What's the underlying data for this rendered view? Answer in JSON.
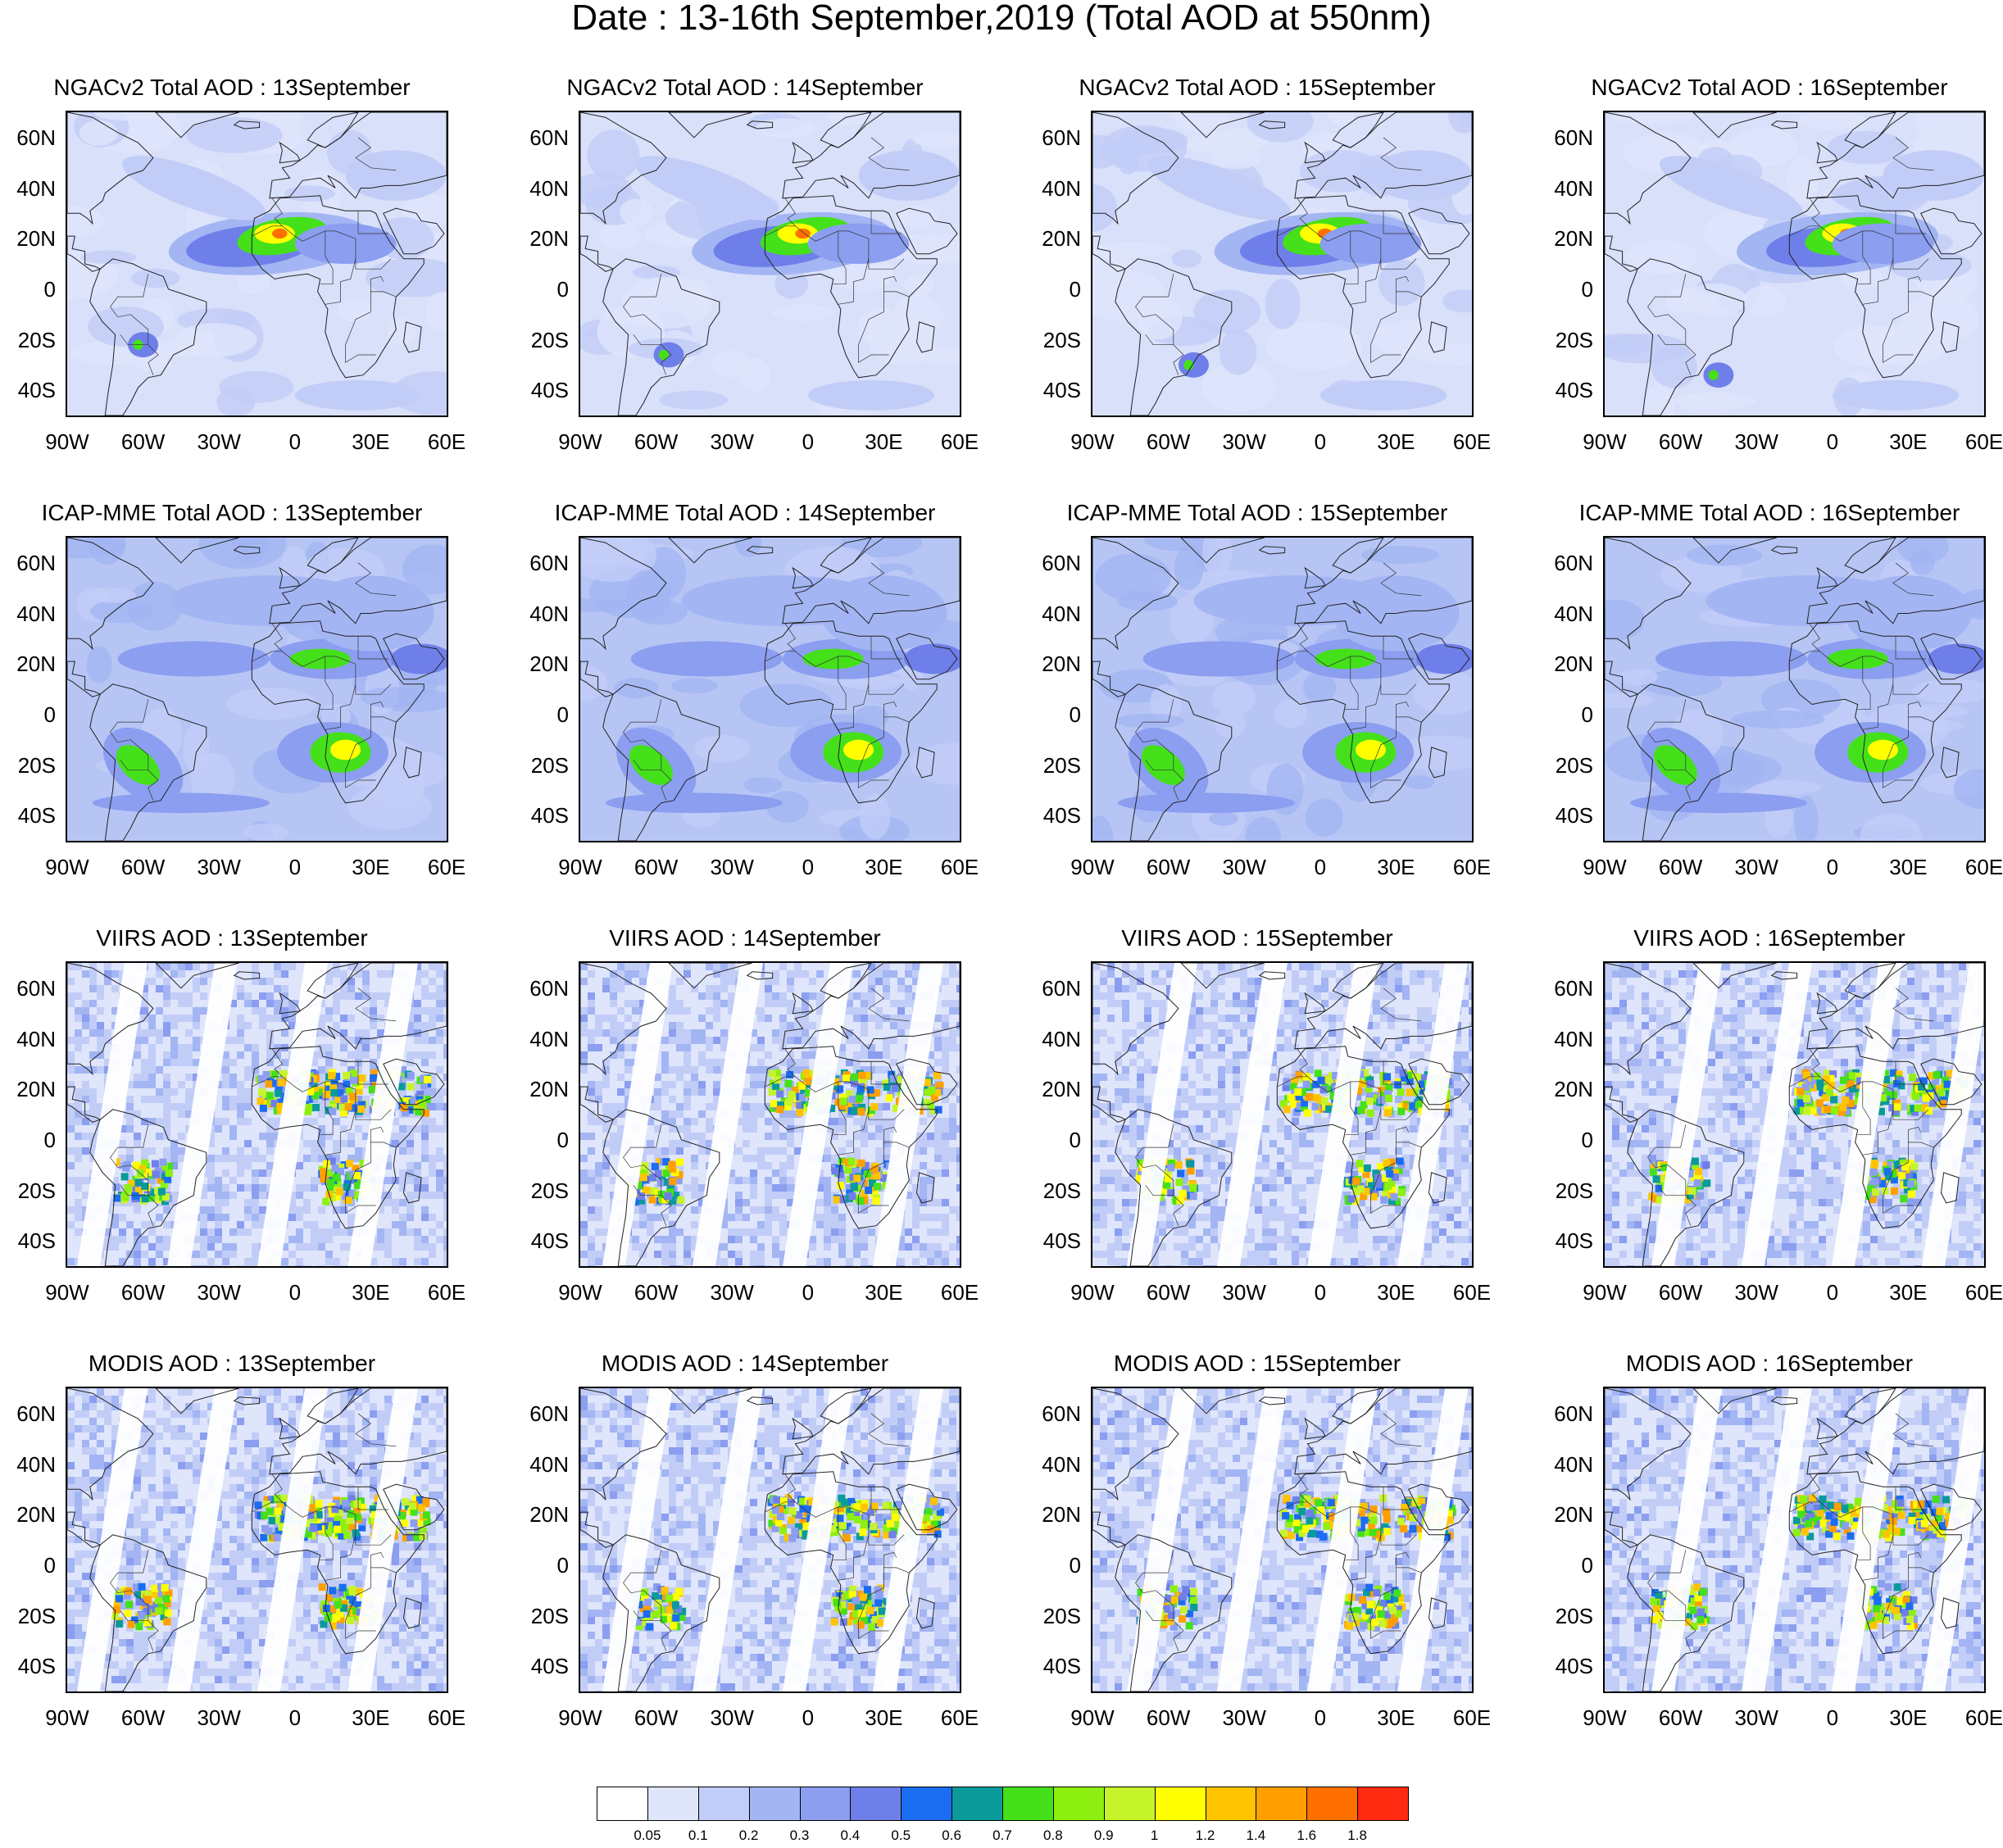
{
  "title": "Date : 13-16th September,2019 (Total AOD at 550nm)",
  "days": [
    "13September",
    "14September",
    "15September",
    "16September"
  ],
  "rows": [
    {
      "prefix": "NGACv2 Total AOD : ",
      "style": "smooth-dust"
    },
    {
      "prefix": "ICAP-MME Total AOD : ",
      "style": "smooth-smoke"
    },
    {
      "prefix": "VIIRS AOD : ",
      "style": "satellite-swath"
    },
    {
      "prefix": "MODIS AOD : ",
      "style": "satellite-swath"
    }
  ],
  "panels": [
    {
      "title": "NGACv2 Total AOD : 13September"
    },
    {
      "title": "NGACv2 Total AOD : 14September"
    },
    {
      "title": "NGACv2 Total AOD : 15September"
    },
    {
      "title": "NGACv2 Total AOD : 16September"
    },
    {
      "title": "ICAP-MME Total AOD : 13September"
    },
    {
      "title": "ICAP-MME Total AOD : 14September"
    },
    {
      "title": "ICAP-MME Total AOD : 15September"
    },
    {
      "title": "ICAP-MME Total AOD : 16September"
    },
    {
      "title": "VIIRS AOD : 13September"
    },
    {
      "title": "VIIRS AOD : 14September"
    },
    {
      "title": "VIIRS AOD : 15September"
    },
    {
      "title": "VIIRS AOD : 16September"
    },
    {
      "title": "MODIS AOD : 13September"
    },
    {
      "title": "MODIS AOD : 14September"
    },
    {
      "title": "MODIS AOD : 15September"
    },
    {
      "title": "MODIS AOD : 16September"
    }
  ],
  "map": {
    "lon_range": [
      -90,
      60
    ],
    "lat_range": [
      -50,
      70
    ],
    "lat_ticks": [
      "60N",
      "40N",
      "20N",
      "0",
      "20S",
      "40S"
    ],
    "lat_tick_values": [
      60,
      40,
      20,
      0,
      -20,
      -40
    ],
    "lon_ticks": [
      "90W",
      "60W",
      "30W",
      "0",
      "30E",
      "60E"
    ],
    "lon_tick_values": [
      -90,
      -60,
      -30,
      0,
      30,
      60
    ]
  },
  "colorbar": {
    "colors": [
      "#ffffff",
      "#dfe5fb",
      "#c2cdf7",
      "#a3b5f3",
      "#8b9ef0",
      "#6f7fe9",
      "#1a6cf0",
      "#0a9a9a",
      "#44e01a",
      "#8df010",
      "#c6f42a",
      "#ffff00",
      "#ffc400",
      "#ff9f00",
      "#ff7000",
      "#ff2a10"
    ],
    "labels": [
      "0.05",
      "0.1",
      "0.2",
      "0.3",
      "0.4",
      "0.5",
      "0.6",
      "0.7",
      "0.8",
      "0.9",
      "1",
      "1.2",
      "1.4",
      "1.6",
      "1.8"
    ]
  }
}
